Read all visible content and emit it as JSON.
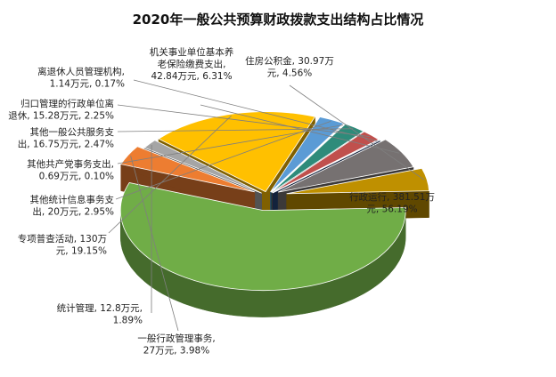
{
  "chart_data": {
    "type": "pie",
    "title": "2020年一般公共预算财政拨款支出结构占比情况",
    "unit": "万元",
    "slices": [
      {
        "name": "行政运行",
        "value": 381.51,
        "percent": 56.19,
        "label_lines": [
          "行政运行, 381.51万",
          "元, 56.19%"
        ],
        "color": "#70AD47"
      },
      {
        "name": "一般行政管理事务",
        "value": 27,
        "percent": 3.98,
        "label_lines": [
          "一般行政管理事务,",
          "27万元, 3.98%"
        ],
        "color": "#ED7D31"
      },
      {
        "name": "统计管理",
        "value": 12.8,
        "percent": 1.89,
        "label_lines": [
          "统计管理, 12.8万元,",
          "1.89%"
        ],
        "color": "#A5A5A5"
      },
      {
        "name": "专项普查活动",
        "value": 130,
        "percent": 19.15,
        "label_lines": [
          "专项普查活动, 130万",
          "元, 19.15%"
        ],
        "color": "#FFC000"
      },
      {
        "name": "其他统计信息事务支出",
        "value": 20,
        "percent": 2.95,
        "label_lines": [
          "其他统计信息事务支",
          "出, 20万元, 2.95%"
        ],
        "color": "#5B9BD5"
      },
      {
        "name": "其他共产党事务支出",
        "value": 0.69,
        "percent": 0.1,
        "label_lines": [
          "其他共产党事务支出,",
          "0.69万元, 0.10%"
        ],
        "color": "#4472C4"
      },
      {
        "name": "其他一般公共服务支出",
        "value": 16.75,
        "percent": 2.47,
        "label_lines": [
          "其他一般公共服务支",
          "出, 16.75万元, 2.47%"
        ],
        "color": "#2E8B7A"
      },
      {
        "name": "归口管理的行政单位离退休",
        "value": 15.28,
        "percent": 2.25,
        "label_lines": [
          "归口管理的行政单位离",
          "退休, 15.28万元, 2.25%"
        ],
        "color": "#C0504D"
      },
      {
        "name": "离退休人员管理机构",
        "value": 1.14,
        "percent": 0.17,
        "label_lines": [
          "离退休人员管理机构,",
          "1.14万元, 0.17%"
        ],
        "color": "#264478"
      },
      {
        "name": "机关事业单位基本养老保险缴费支出",
        "value": 42.84,
        "percent": 6.31,
        "label_lines": [
          "机关事业单位基本养",
          "老保险缴费支出,",
          "42.84万元, 6.31%"
        ],
        "color": "#767171"
      },
      {
        "name": "住房公积金",
        "value": 30.97,
        "percent": 4.56,
        "label_lines": [
          "住房公积金, 30.97万",
          "元, 4.56%"
        ],
        "color": "#BF9000"
      }
    ]
  }
}
